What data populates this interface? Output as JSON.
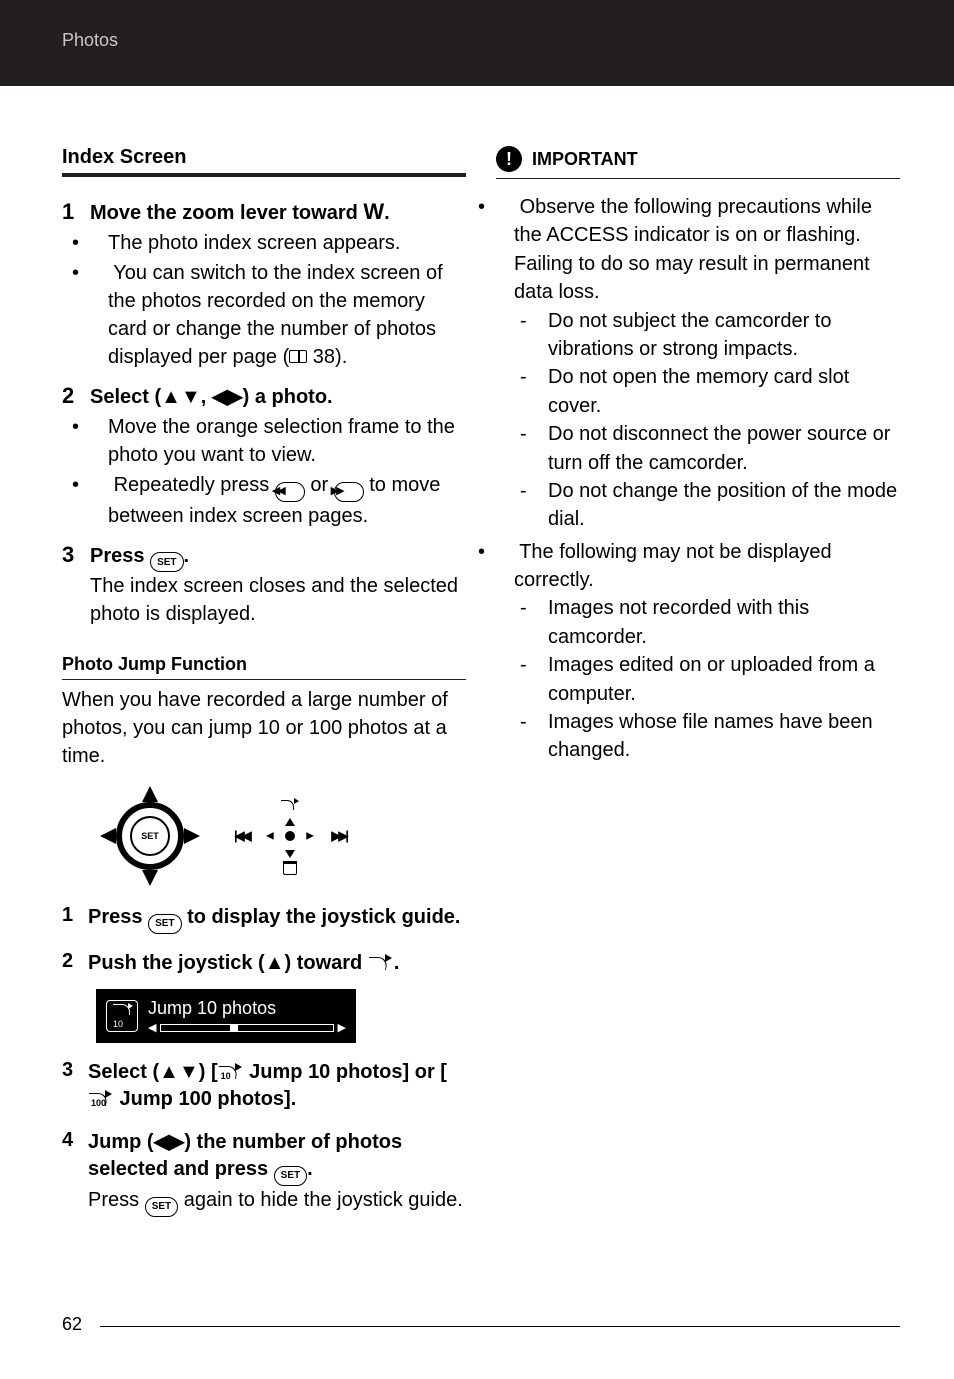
{
  "header": {
    "section": "Photos"
  },
  "left": {
    "section_title": "Index Screen",
    "steps": [
      {
        "num": "1",
        "head_pre": "Move the zoom lever toward ",
        "head_sym": "W",
        "head_post": ".",
        "bullets": [
          "The photo index screen appears.",
          "You can switch to the index screen of the photos recorded on the memory card or change the number of photos displayed per page ("
        ],
        "pageref": " 38)."
      },
      {
        "num": "2",
        "head": "Select (▲▼, ◀▶) a photo.",
        "bullets": [
          "Move the orange selection frame to the photo you want to view.",
          "Repeatedly press "
        ],
        "bullet2_mid": " or ",
        "bullet2_end": " to move between index screen pages."
      },
      {
        "num": "3",
        "head_pre": "Press ",
        "head_post": ".",
        "body": "The index screen closes and the selected photo is displayed."
      }
    ],
    "sub_title": "Photo Jump Function",
    "sub_para": "When you have recorded a large number of photos, you can jump 10 or 100 photos at a time.",
    "jump_label": "Jump 10 photos",
    "sub_steps": [
      {
        "num": "1",
        "head_pre": "Press ",
        "head_post": " to display the joystick guide."
      },
      {
        "num": "2",
        "head_pre": "Push the joystick (▲) toward ",
        "head_post": "."
      },
      {
        "num": "3",
        "head_pre": "Select (▲▼) [",
        "head_mid": " Jump 10 photos] or [",
        "head_post": " Jump 100 photos].",
        "icon1": "10",
        "icon2": "100"
      },
      {
        "num": "4",
        "head_pre": "Jump (◀▶) the number of photos selected and press ",
        "head_post": ".",
        "body_pre": "Press ",
        "body_post": " again to hide the joystick guide."
      }
    ]
  },
  "right": {
    "title": "IMPORTANT",
    "items": [
      {
        "text": "Observe the following precautions while the ACCESS indicator is on or flashing. Failing to do so may result in permanent data loss.",
        "dashes": [
          "Do not subject the camcorder to vibrations or strong impacts.",
          "Do not open the memory card slot cover.",
          "Do not disconnect the power source or turn off the camcorder.",
          "Do not change the position of the mode dial."
        ]
      },
      {
        "text": "The following may not be displayed correctly.",
        "dashes": [
          "Images not recorded with this camcorder.",
          "Images edited on or uploaded from a computer.",
          "Images whose file names have been changed."
        ]
      }
    ]
  },
  "page_num": "62"
}
